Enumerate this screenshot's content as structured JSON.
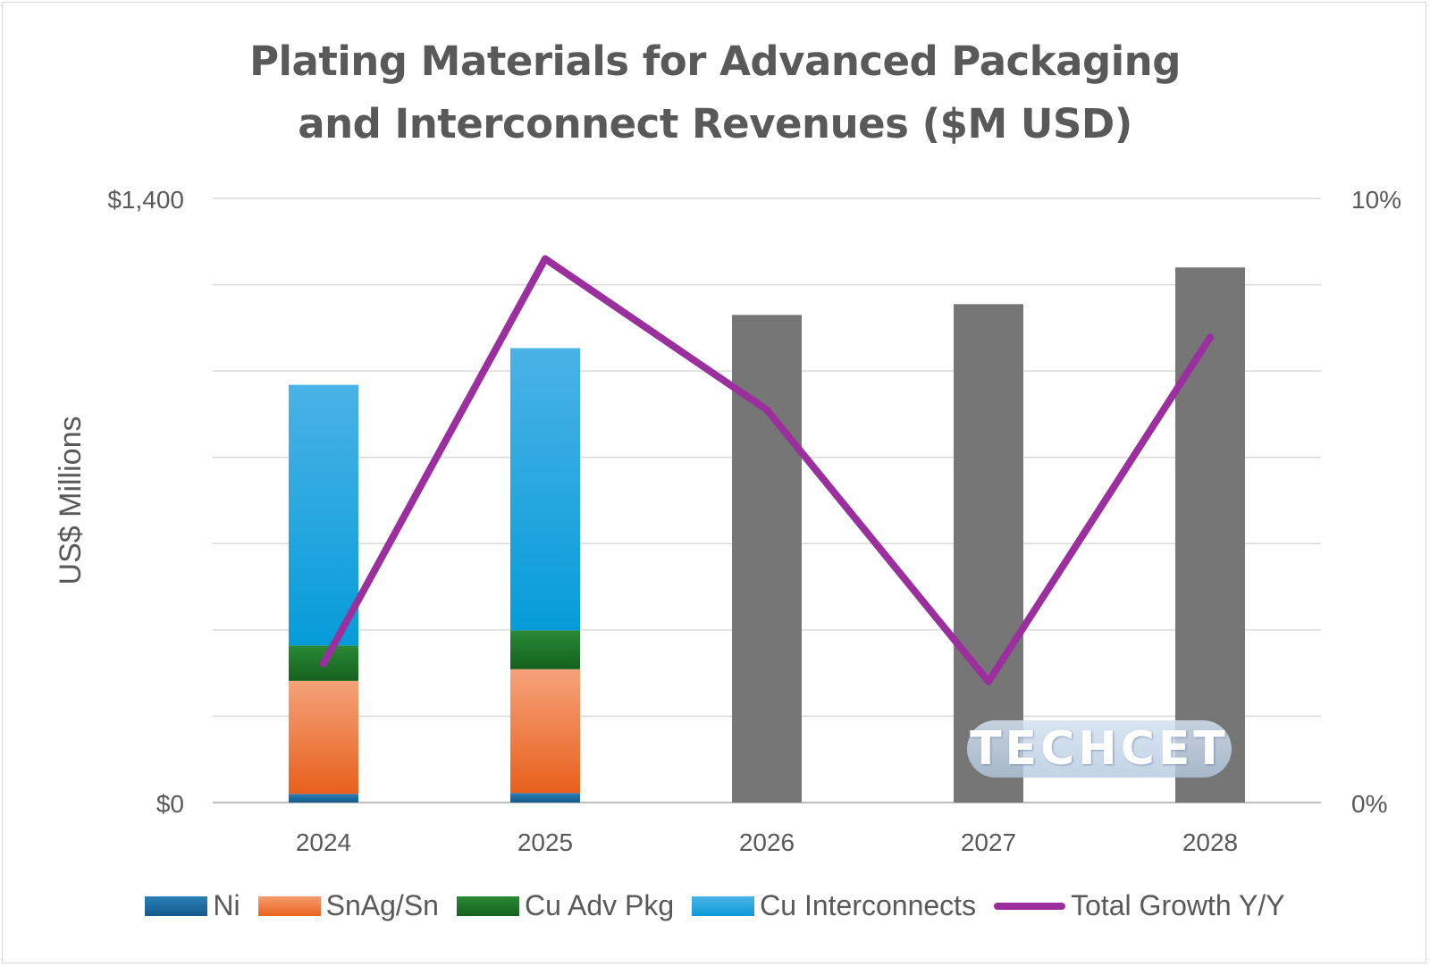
{
  "chart_data": {
    "type": "bar",
    "title": "Plating Materials for Advanced Packaging and Interconnect Revenues ($M USD)",
    "ylabel": "US$ Millions",
    "categories": [
      "2024",
      "2025",
      "2026",
      "2027",
      "2028"
    ],
    "ylim": [
      0,
      1400
    ],
    "y_tick_labels": [
      "$0",
      "$1,400"
    ],
    "y2lim": [
      0,
      10
    ],
    "y2_tick_labels": [
      "0%",
      "10%"
    ],
    "grid": true,
    "stacked": true,
    "series": [
      {
        "name": "Ni",
        "values": [
          20,
          22,
          null,
          null,
          null
        ],
        "color": "#1f6fa5"
      },
      {
        "name": "SnAg/Sn",
        "values": [
          262,
          287,
          null,
          null,
          null
        ],
        "color": "#f07a3a"
      },
      {
        "name": "Cu Adv Pkg",
        "values": [
          82,
          90,
          null,
          null,
          null
        ],
        "color": "#1f7a2a"
      },
      {
        "name": "Cu Interconnects",
        "values": [
          604,
          654,
          null,
          null,
          null
        ],
        "color": "#1aa3e0"
      },
      {
        "name": "",
        "values": [
          null,
          null,
          1130,
          1155,
          1240
        ],
        "color": "#767676"
      }
    ],
    "line_series": {
      "name": "Total Growth Y/Y",
      "axis": "secondary",
      "values": [
        2.3,
        9.0,
        6.5,
        2.0,
        7.7
      ],
      "color": "#9b2f9e"
    },
    "legend_position": "bottom",
    "watermark": "TECHCET"
  }
}
